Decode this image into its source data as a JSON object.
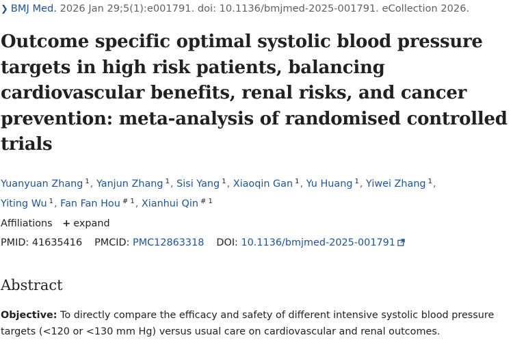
{
  "citation": {
    "journal": "BMJ Med.",
    "details": "2026 Jan 29;5(1):e001791. doi: 10.1136/bmjmed-2025-001791. eCollection 2026."
  },
  "article": {
    "title": "Outcome specific optimal systolic blood pressure targets in high risk patients, balancing cardiovascular benefits, renal risks, and cancer prevention: meta-analysis of randomised controlled trials"
  },
  "authors": [
    {
      "name": "Yuanyuan Zhang",
      "sup": "1"
    },
    {
      "name": "Yanjun Zhang",
      "sup": "1"
    },
    {
      "name": "Sisi Yang",
      "sup": "1"
    },
    {
      "name": "Xiaoqin Gan",
      "sup": "1"
    },
    {
      "name": "Yu Huang",
      "sup": "1"
    },
    {
      "name": "Yiwei Zhang",
      "sup": "1"
    },
    {
      "name": "Yiting Wu",
      "sup": "1"
    },
    {
      "name": "Fan Fan Hou",
      "sup": "# 1"
    },
    {
      "name": "Xianhui Qin",
      "sup": "# 1"
    }
  ],
  "affiliations": {
    "label": "Affiliations",
    "expand_label": "expand"
  },
  "identifiers": {
    "pmid_label": "PMID:",
    "pmid": "41635416",
    "pmcid_label": "PMCID:",
    "pmcid": "PMC12863318",
    "doi_label": "DOI:",
    "doi": "10.1136/bmjmed-2025-001791"
  },
  "abstract": {
    "heading": "Abstract",
    "objective_label": "Objective:",
    "objective_text": " To directly compare the efficacy and safety of different intensive systolic blood pressure targets (<120 or <130 mm Hg) versus usual care on cardiovascular and renal outcomes."
  },
  "icons": {
    "chevron": "chevron-right-icon",
    "external": "external-link-icon",
    "plus": "plus-icon"
  },
  "colors": {
    "link": "#205493",
    "text": "#212121",
    "muted": "#5b616b"
  }
}
